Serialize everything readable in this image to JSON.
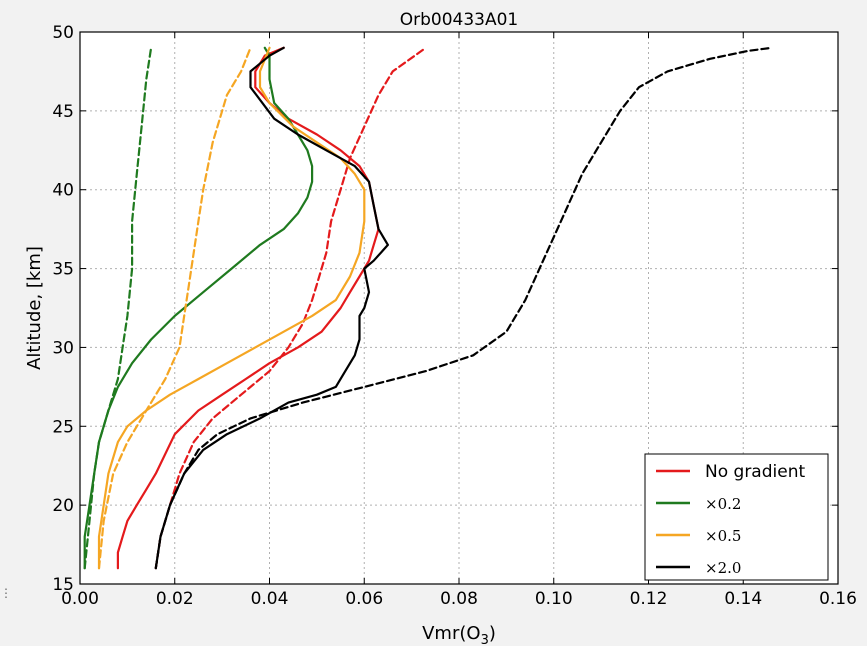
{
  "chart_data": {
    "type": "line",
    "title": "Orb00433A01",
    "xlabel_main": "Vmr(O",
    "xlabel_sub": "3",
    "xlabel_close": ")",
    "ylabel": "Altitude, [km]",
    "xlim": [
      0.0,
      0.16
    ],
    "ylim": [
      15,
      50
    ],
    "xticks": [
      "0.00",
      "0.02",
      "0.04",
      "0.06",
      "0.08",
      "0.10",
      "0.12",
      "0.14",
      "0.16"
    ],
    "yticks": [
      "15",
      "20",
      "25",
      "30",
      "35",
      "40",
      "45",
      "50"
    ],
    "grid": true,
    "legend_position": "bottom-right",
    "legend": [
      {
        "label": "No gradient",
        "color": "#e41a1c"
      },
      {
        "label": "×0.2",
        "color": "#1f7a1f"
      },
      {
        "label": "×0.5",
        "color": "#f5a623"
      },
      {
        "label": "×2.0",
        "color": "#000000"
      }
    ],
    "series": [
      {
        "name": "No gradient",
        "color": "#e41a1c",
        "style": "solid",
        "x": [
          0.008,
          0.008,
          0.009,
          0.01,
          0.012,
          0.014,
          0.016,
          0.02,
          0.025,
          0.03,
          0.035,
          0.04,
          0.046,
          0.051,
          0.055,
          0.057,
          0.059,
          0.061,
          0.062,
          0.063,
          0.062,
          0.061,
          0.059,
          0.055,
          0.05,
          0.044,
          0.04,
          0.037,
          0.037,
          0.039,
          0.043
        ],
        "y": [
          16,
          17,
          18,
          19,
          20,
          21,
          22,
          24.5,
          26,
          27,
          28,
          29,
          30,
          31,
          32.5,
          33.5,
          34.5,
          35.5,
          36.5,
          37.5,
          39,
          40.5,
          41.5,
          42.5,
          43.5,
          44.5,
          45.5,
          46.5,
          47.5,
          48.5,
          49
        ]
      },
      {
        "name": "",
        "color": "#e41a1c",
        "style": "dashed",
        "x": [
          0.016,
          0.017,
          0.019,
          0.021,
          0.024,
          0.028,
          0.034,
          0.04,
          0.044,
          0.047,
          0.049,
          0.05,
          0.052,
          0.053,
          0.055,
          0.057,
          0.06,
          0.063,
          0.066,
          0.073
        ],
        "y": [
          16,
          18,
          20,
          22,
          24,
          25.5,
          27,
          28.5,
          30,
          31.5,
          33,
          34,
          36,
          38,
          40,
          42,
          44,
          46,
          47.5,
          49
        ]
      },
      {
        "name": "×0.2",
        "color": "#1f7a1f",
        "style": "solid",
        "x": [
          0.001,
          0.001,
          0.002,
          0.003,
          0.004,
          0.006,
          0.008,
          0.011,
          0.015,
          0.02,
          0.026,
          0.032,
          0.038,
          0.043,
          0.046,
          0.048,
          0.049,
          0.049,
          0.048,
          0.046,
          0.044,
          0.041,
          0.04,
          0.04,
          0.039
        ],
        "y": [
          16,
          18,
          20,
          22,
          24,
          26,
          27.5,
          29,
          30.5,
          32,
          33.5,
          35,
          36.5,
          37.5,
          38.5,
          39.5,
          40.5,
          41.5,
          42.5,
          43.5,
          44.5,
          45.5,
          47,
          48.5,
          49
        ]
      },
      {
        "name": "",
        "color": "#1f7a1f",
        "style": "dashed",
        "x": [
          0.001,
          0.002,
          0.003,
          0.004,
          0.006,
          0.008,
          0.009,
          0.01,
          0.011,
          0.011,
          0.012,
          0.013,
          0.014,
          0.015
        ],
        "y": [
          16,
          19,
          22,
          24,
          26,
          28,
          30,
          32,
          35,
          38,
          41,
          44,
          47,
          49
        ]
      },
      {
        "name": "×0.5",
        "color": "#f5a623",
        "style": "solid",
        "x": [
          0.004,
          0.004,
          0.005,
          0.006,
          0.008,
          0.01,
          0.014,
          0.019,
          0.025,
          0.031,
          0.037,
          0.043,
          0.049,
          0.054,
          0.057,
          0.059,
          0.06,
          0.06,
          0.058,
          0.055,
          0.05,
          0.045,
          0.04,
          0.038,
          0.038,
          0.04
        ],
        "y": [
          16,
          18,
          20,
          22,
          24,
          25,
          26,
          27,
          28,
          29,
          30,
          31,
          32,
          33,
          34.5,
          36,
          38,
          40,
          41,
          42,
          43,
          44,
          45.5,
          46.5,
          47.5,
          49
        ]
      },
      {
        "name": "",
        "color": "#f5a623",
        "style": "dashed",
        "x": [
          0.004,
          0.005,
          0.007,
          0.01,
          0.014,
          0.018,
          0.021,
          0.022,
          0.023,
          0.024,
          0.025,
          0.026,
          0.028,
          0.031,
          0.034,
          0.036
        ],
        "y": [
          16,
          19,
          22,
          24,
          26,
          28,
          30,
          32,
          34,
          36,
          38,
          40,
          43,
          46,
          47.5,
          49
        ]
      },
      {
        "name": "×2.0",
        "color": "#000000",
        "style": "solid",
        "x": [
          0.016,
          0.017,
          0.019,
          0.022,
          0.026,
          0.031,
          0.038,
          0.044,
          0.05,
          0.054,
          0.056,
          0.058,
          0.059,
          0.059,
          0.06,
          0.061,
          0.06,
          0.062,
          0.065,
          0.063,
          0.062,
          0.061,
          0.058,
          0.052,
          0.046,
          0.041,
          0.036,
          0.036,
          0.04,
          0.043
        ],
        "y": [
          16,
          18,
          20,
          22,
          23.5,
          24.5,
          25.5,
          26.5,
          27,
          27.5,
          28.5,
          29.5,
          30.5,
          32,
          32.5,
          33.5,
          35,
          35.5,
          36.5,
          37.5,
          39,
          40.5,
          41.5,
          42.5,
          43.5,
          44.5,
          46.5,
          47.5,
          48.5,
          49
        ]
      },
      {
        "name": "",
        "color": "#000000",
        "style": "dashed",
        "x": [
          0.016,
          0.017,
          0.019,
          0.022,
          0.025,
          0.029,
          0.036,
          0.047,
          0.06,
          0.073,
          0.083,
          0.09,
          0.094,
          0.097,
          0.1,
          0.103,
          0.106,
          0.11,
          0.114,
          0.118,
          0.124,
          0.133,
          0.141,
          0.146
        ],
        "y": [
          16,
          18,
          20,
          22,
          23.5,
          24.5,
          25.5,
          26.5,
          27.5,
          28.5,
          29.5,
          31,
          33,
          35,
          37,
          39,
          41,
          43,
          45,
          46.5,
          47.5,
          48.3,
          48.8,
          49
        ]
      }
    ]
  }
}
